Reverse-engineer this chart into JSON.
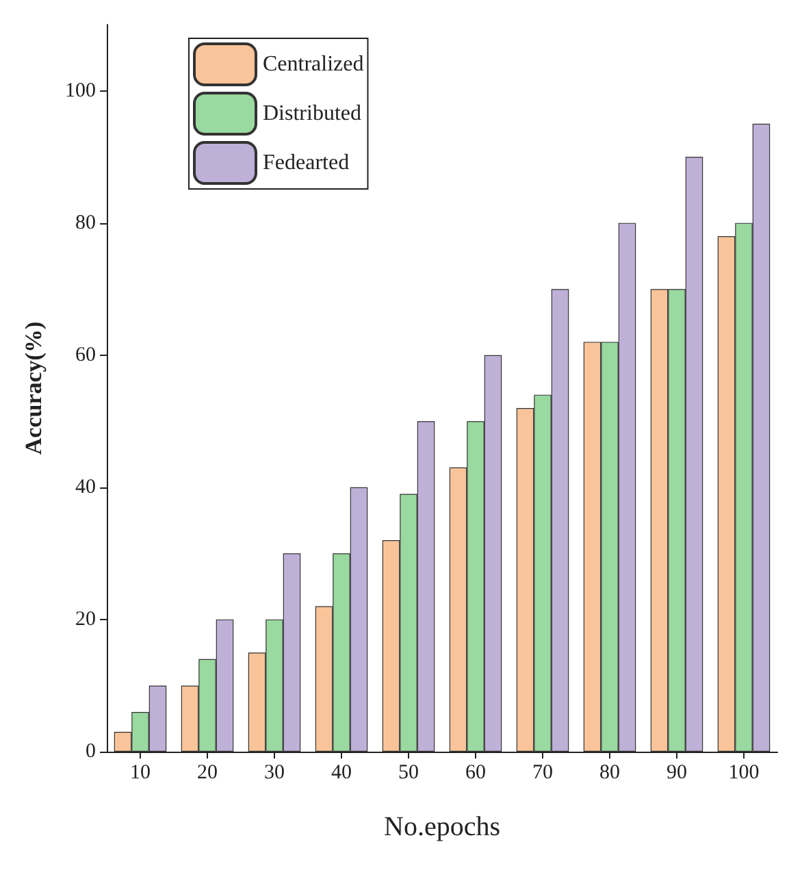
{
  "chart_data": {
    "type": "bar",
    "xlabel": "No.epochs",
    "ylabel": "Accuracy(%)",
    "categories": [
      "10",
      "20",
      "30",
      "40",
      "50",
      "60",
      "70",
      "80",
      "90",
      "100"
    ],
    "series": [
      {
        "name": "Centralized",
        "color": "#f9c49a",
        "values": [
          3,
          10,
          15,
          22,
          32,
          43,
          52,
          62,
          70,
          78
        ]
      },
      {
        "name": "Distributed",
        "color": "#9ad9a0",
        "values": [
          6,
          14,
          20,
          30,
          39,
          50,
          54,
          62,
          70,
          80
        ]
      },
      {
        "name": "Fedearted",
        "color": "#bfb0d8",
        "values": [
          10,
          20,
          30,
          40,
          50,
          60,
          70,
          80,
          90,
          95
        ]
      }
    ],
    "ylim": [
      0,
      110
    ],
    "yticks": [
      0,
      20,
      40,
      60,
      80,
      100
    ],
    "grid": false,
    "legend": "top left"
  }
}
